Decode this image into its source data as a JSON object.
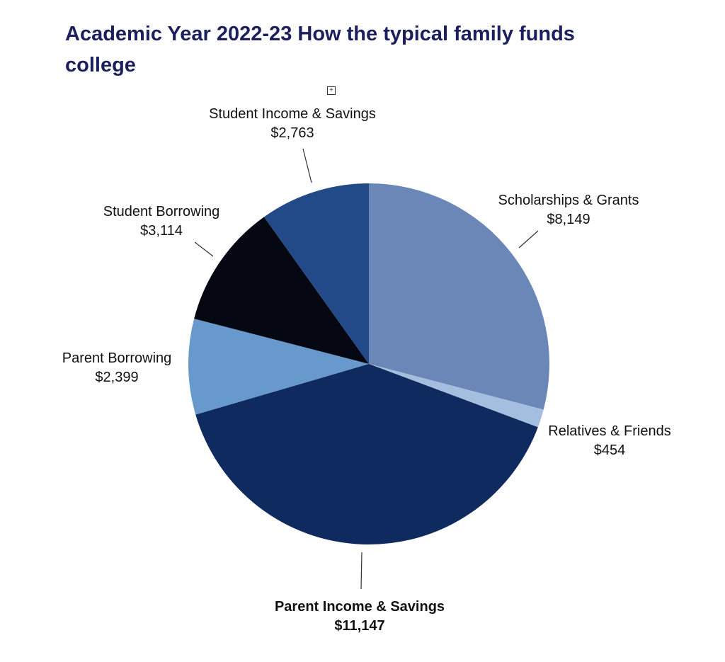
{
  "title": "Academic Year 2022-23 How the typical family funds college",
  "expand_icon": "expand-icon",
  "chart_data": {
    "type": "pie",
    "title": "Academic Year 2022-23 How the typical family funds college",
    "start_angle_deg": 0,
    "direction": "clockwise",
    "total": 28026,
    "slices": [
      {
        "label": "Scholarships & Grants",
        "value": 8149,
        "display": "$8,149",
        "color": "#6a87b8",
        "bold": false
      },
      {
        "label": "Relatives & Friends",
        "value": 454,
        "display": "$454",
        "color": "#a3bedf",
        "bold": false
      },
      {
        "label": "Parent Income & Savings",
        "value": 11147,
        "display": "$11,147",
        "color": "#0f2a5f",
        "bold": true
      },
      {
        "label": "Parent Borrowing",
        "value": 2399,
        "display": "$2,399",
        "color": "#6899cc",
        "bold": false
      },
      {
        "label": "Student Borrowing",
        "value": 3114,
        "display": "$3,114",
        "color": "#050812",
        "bold": false
      },
      {
        "label": "Student Income & Savings",
        "value": 2763,
        "display": "$2,763",
        "color": "#234a88",
        "bold": false
      }
    ],
    "legend": "none (data labels with leader lines)"
  },
  "labels": {
    "scholarships": {
      "name": "Scholarships & Grants",
      "value": "$8,149"
    },
    "relatives": {
      "name": "Relatives & Friends",
      "value": "$454"
    },
    "parent_income": {
      "name": "Parent Income & Savings",
      "value": "$11,147"
    },
    "parent_borrowing": {
      "name": "Parent Borrowing",
      "value": "$2,399"
    },
    "student_borrowing": {
      "name": "Student Borrowing",
      "value": "$3,114"
    },
    "student_income": {
      "name": "Student Income & Savings",
      "value": "$2,763"
    }
  }
}
